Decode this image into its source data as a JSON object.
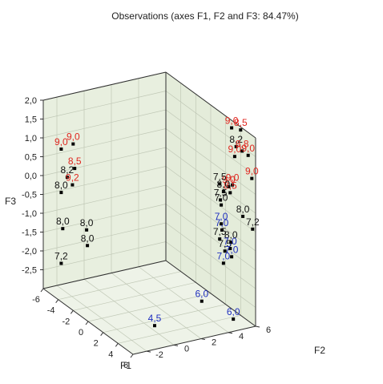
{
  "chart_data": {
    "type": "scatter",
    "title": "Observations (axes F1, F2 and F3: 84.47%)",
    "xlabel": "F1",
    "ylabel": "F2",
    "zlabel": "F3",
    "xlim": [
      -6,
      6
    ],
    "ylim": [
      -3,
      6
    ],
    "zlim": [
      -3,
      2
    ],
    "xticks": [
      "-6",
      "-4",
      "-2",
      "0",
      "2",
      "4",
      "6"
    ],
    "yticks": [
      "-2",
      "0",
      "2",
      "4",
      "6"
    ],
    "zticks": [
      "2,0",
      "1,5",
      "1,0",
      "0,5",
      "0,0",
      "-0,5",
      "-1,0",
      "-1,5",
      "-2,0",
      "-2,5"
    ],
    "grid": true,
    "colors": {
      "pane_back": "#e4ecda",
      "pane_side": "#e8efdf",
      "pane_floor": "#eef3e8",
      "grid": "#c0c8b6",
      "frame": "#303030",
      "red": "#e0261f",
      "blue": "#1f2fbf",
      "black": "#111111",
      "marker": "#000000"
    },
    "points": [
      {
        "label": "9,0",
        "color": "red",
        "x": -2.0,
        "y": -3.0,
        "z": 1.42
      },
      {
        "label": "9,0",
        "color": "red",
        "x": -3.6,
        "y": -3.0,
        "z": 1.05
      },
      {
        "label": "8,5",
        "color": "red",
        "x": -1.8,
        "y": -3.0,
        "z": 0.8
      },
      {
        "label": "8,2",
        "color": "black",
        "x": -2.8,
        "y": -3.0,
        "z": 0.42
      },
      {
        "label": "9,2",
        "color": "red",
        "x": -2.1,
        "y": -3.0,
        "z": 0.32
      },
      {
        "label": "8,0",
        "color": "black",
        "x": -3.6,
        "y": -3.0,
        "z": -0.1
      },
      {
        "label": "8,0",
        "color": "black",
        "x": -3.4,
        "y": -3.0,
        "z": -1.03
      },
      {
        "label": "8,0",
        "color": "black",
        "x": -0.2,
        "y": -3.0,
        "z": -0.6
      },
      {
        "label": "8,0",
        "color": "black",
        "x": -0.1,
        "y": -3.0,
        "z": -1.0
      },
      {
        "label": "7,2",
        "color": "black",
        "x": -3.6,
        "y": -3.0,
        "z": -1.98
      },
      {
        "label": "9,0",
        "color": "red",
        "x": 2.8,
        "y": 6.0,
        "z": 1.8
      },
      {
        "label": "8,5",
        "color": "red",
        "x": 4.0,
        "y": 6.0,
        "z": 1.92
      },
      {
        "label": "8,2",
        "color": "black",
        "x": 3.4,
        "y": 6.0,
        "z": 1.39
      },
      {
        "label": "8,8",
        "color": "red",
        "x": 4.2,
        "y": 6.0,
        "z": 1.39
      },
      {
        "label": "9,0",
        "color": "red",
        "x": 5.0,
        "y": 6.0,
        "z": 1.39
      },
      {
        "label": "9,0",
        "color": "red",
        "x": 3.2,
        "y": 6.0,
        "z": 1.1
      },
      {
        "label": "9,0",
        "color": "red",
        "x": 5.5,
        "y": 6.0,
        "z": 0.85
      },
      {
        "label": "9,0",
        "color": "red",
        "x": 2.9,
        "y": 6.0,
        "z": 0.3
      },
      {
        "label": "9,0",
        "color": "red",
        "x": 2.4,
        "y": 6.0,
        "z": 0.18
      },
      {
        "label": "8,5",
        "color": "red",
        "x": 2.6,
        "y": 6.0,
        "z": 0.05
      },
      {
        "label": "7,5",
        "color": "black",
        "x": 1.2,
        "y": 6.0,
        "z": 0.08
      },
      {
        "label": "8,0",
        "color": "black",
        "x": 1.7,
        "y": 6.0,
        "z": -0.05
      },
      {
        "label": "7,5",
        "color": "black",
        "x": 1.3,
        "y": 6.0,
        "z": -0.33
      },
      {
        "label": "7,0",
        "color": "black",
        "x": 1.4,
        "y": 6.0,
        "z": -0.45
      },
      {
        "label": "8,0",
        "color": "black",
        "x": 4.3,
        "y": 6.0,
        "z": -0.33
      },
      {
        "label": "7,2",
        "color": "black",
        "x": 5.6,
        "y": 6.0,
        "z": -0.48
      },
      {
        "label": "7,0",
        "color": "blue",
        "x": 1.4,
        "y": 6.0,
        "z": -0.95
      },
      {
        "label": "7,0",
        "color": "blue",
        "x": 1.5,
        "y": 6.0,
        "z": -1.1
      },
      {
        "label": "8,0",
        "color": "black",
        "x": 2.7,
        "y": 6.0,
        "z": -1.25
      },
      {
        "label": "7,5",
        "color": "black",
        "x": 1.2,
        "y": 6.0,
        "z": -1.38
      },
      {
        "label": "7,5",
        "color": "black",
        "x": 1.9,
        "y": 6.0,
        "z": -1.6
      },
      {
        "label": "7,0",
        "color": "blue",
        "x": 2.6,
        "y": 6.0,
        "z": -1.43
      },
      {
        "label": "7,0",
        "color": "blue",
        "x": 2.8,
        "y": 6.0,
        "z": -1.62
      },
      {
        "label": "7,0",
        "color": "blue",
        "x": 1.7,
        "y": 6.0,
        "z": -1.95
      },
      {
        "label": "6,0",
        "color": "blue",
        "x": 0.8,
        "y": 4.9,
        "z": -3.0
      },
      {
        "label": "6,0",
        "color": "blue",
        "x": 4.3,
        "y": 5.3,
        "z": -3.0
      },
      {
        "label": "4,5",
        "color": "blue",
        "x": 2.7,
        "y": 0.4,
        "z": -3.0
      }
    ]
  }
}
